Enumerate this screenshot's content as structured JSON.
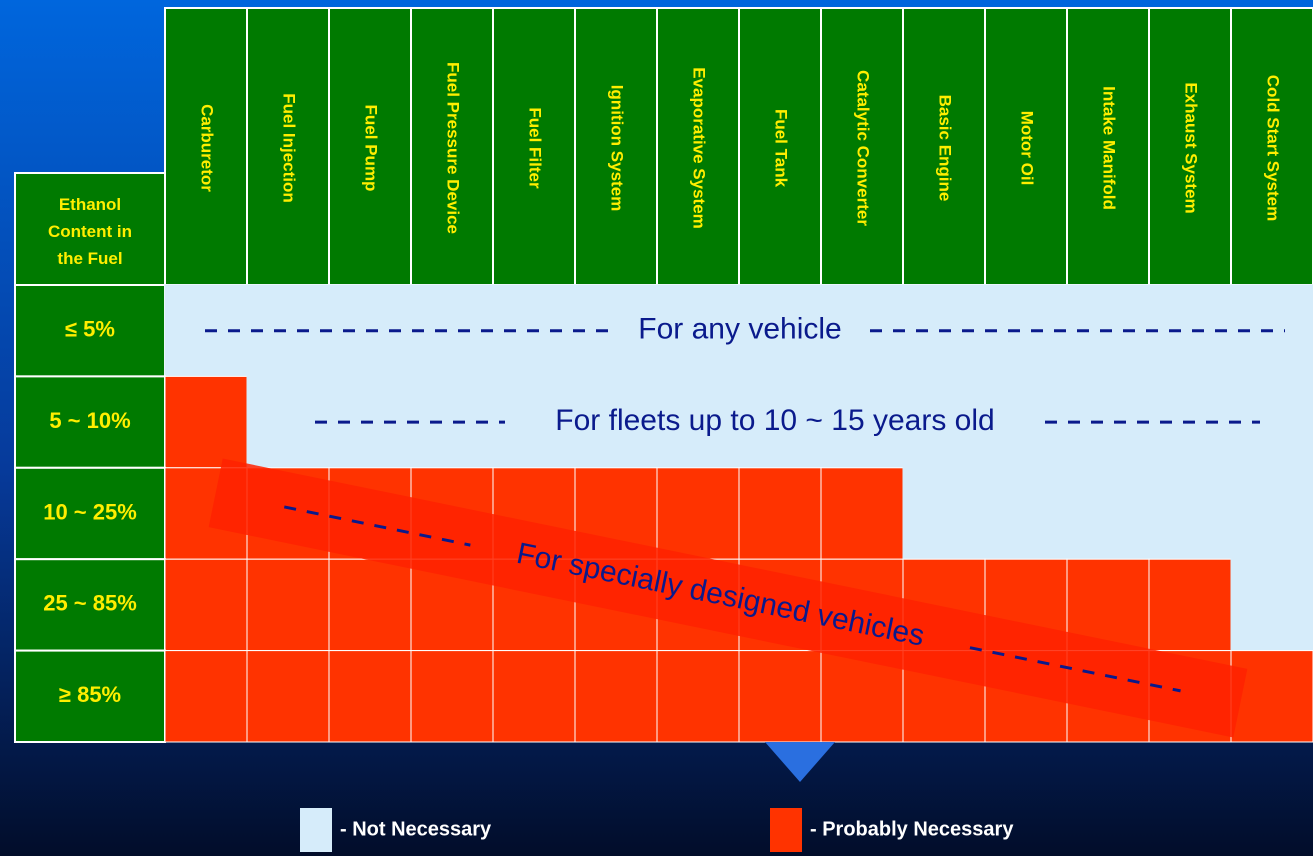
{
  "corner": "Ethanol Content in the Fuel",
  "columns": [
    "Carburetor",
    "Fuel Injection",
    "Fuel Pump",
    "Fuel Pressure Device",
    "Fuel Filter",
    "Ignition System",
    "Evaporative System",
    "Fuel Tank",
    "Catalytic Converter",
    "Basic Engine",
    "Motor Oil",
    "Intake Manifold",
    "Exhaust System",
    "Cold Start System"
  ],
  "rows": [
    {
      "label": "≤ 5%",
      "cells": [
        "#d6ecfa",
        "#d6ecfa",
        "#d6ecfa",
        "#d6ecfa",
        "#d6ecfa",
        "#d6ecfa",
        "#d6ecfa",
        "#d6ecfa",
        "#d6ecfa",
        "#d6ecfa",
        "#d6ecfa",
        "#d6ecfa",
        "#d6ecfa",
        "#d6ecfa"
      ]
    },
    {
      "label": "5 ~ 10%",
      "cells": [
        "#ff3300",
        "#d6ecfa",
        "#d6ecfa",
        "#d6ecfa",
        "#d6ecfa",
        "#d6ecfa",
        "#d6ecfa",
        "#d6ecfa",
        "#d6ecfa",
        "#d6ecfa",
        "#d6ecfa",
        "#d6ecfa",
        "#d6ecfa",
        "#d6ecfa"
      ]
    },
    {
      "label": "10 ~ 25%",
      "cells": [
        "#ff3300",
        "#ff3300",
        "#ff3300",
        "#ff3300",
        "#ff3300",
        "#ff3300",
        "#ff3300",
        "#ff3300",
        "#ff3300",
        "#d6ecfa",
        "#d6ecfa",
        "#d6ecfa",
        "#d6ecfa",
        "#d6ecfa"
      ]
    },
    {
      "label": "25 ~ 85%",
      "cells": [
        "#ff3300",
        "#ff3300",
        "#ff3300",
        "#ff3300",
        "#ff3300",
        "#ff3300",
        "#ff3300",
        "#ff3300",
        "#ff3300",
        "#ff3300",
        "#ff3300",
        "#ff3300",
        "#ff3300",
        "#d6ecfa"
      ]
    },
    {
      "label": "≥ 85%",
      "cells": [
        "#ff3300",
        "#ff3300",
        "#ff3300",
        "#ff3300",
        "#ff3300",
        "#ff3300",
        "#ff3300",
        "#ff3300",
        "#ff3300",
        "#ff3300",
        "#ff3300",
        "#ff3300",
        "#ff3300",
        "#ff3300"
      ]
    }
  ],
  "notes": [
    "For any vehicle",
    "For fleets up to 10 ~ 15 years old",
    "For specially designed vehicles"
  ],
  "legend": [
    {
      "label": "- Not Necessary",
      "color": "#d6ecfa"
    },
    {
      "label": "- Probably Necessary",
      "color": "#ff3300"
    }
  ]
}
